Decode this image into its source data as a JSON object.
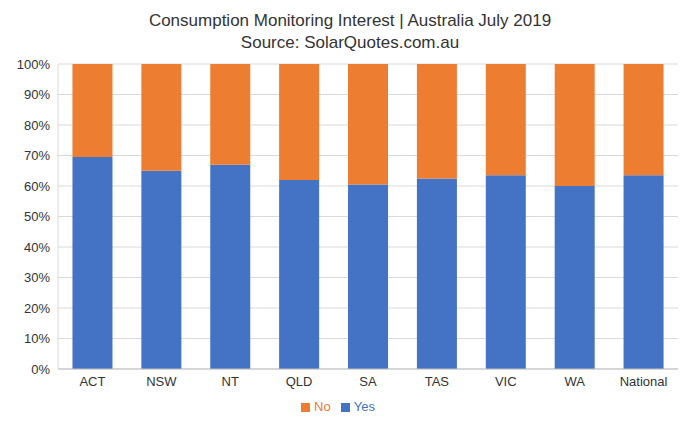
{
  "chart_data": {
    "type": "bar",
    "title": "Consumption Monitoring Interest | Australia July 2019",
    "subtitle": "Source: SolarQuotes.com.au",
    "categories": [
      "ACT",
      "NSW",
      "NT",
      "QLD",
      "SA",
      "TAS",
      "VIC",
      "WA",
      "National"
    ],
    "series": [
      {
        "name": "Yes",
        "color": "#4472c4",
        "values": [
          69.5,
          65,
          67,
          62,
          60.5,
          62.5,
          63.5,
          60,
          63.5
        ]
      },
      {
        "name": "No",
        "color": "#ed7d31",
        "values": [
          30.5,
          35,
          33,
          38,
          39.5,
          37.5,
          36.5,
          40,
          36.5
        ]
      }
    ],
    "stacked": true,
    "ylim": [
      0,
      100
    ],
    "yticks": [
      {
        "value": 0,
        "label": "0%"
      },
      {
        "value": 10,
        "label": "10%"
      },
      {
        "value": 20,
        "label": "20%"
      },
      {
        "value": 30,
        "label": "30%"
      },
      {
        "value": 40,
        "label": "40%"
      },
      {
        "value": 50,
        "label": "50%"
      },
      {
        "value": 60,
        "label": "60%"
      },
      {
        "value": 70,
        "label": "70%"
      },
      {
        "value": 80,
        "label": "80%"
      },
      {
        "value": 90,
        "label": "90%"
      },
      {
        "value": 100,
        "label": "100%"
      }
    ],
    "grid": true,
    "legend": "bottom"
  }
}
